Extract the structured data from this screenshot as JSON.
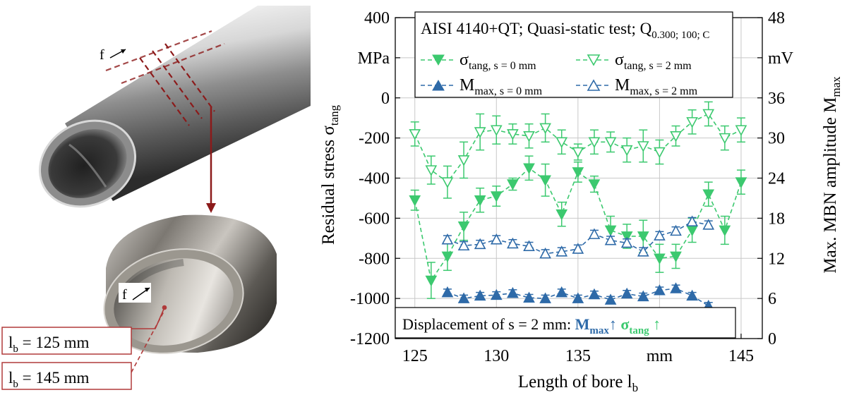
{
  "photo": {
    "direction_label": "f",
    "bore_labels": [
      {
        "text": "l",
        "sub": "b",
        "rest": " = 125 mm"
      },
      {
        "text": "l",
        "sub": "b",
        "rest": " = 145 mm"
      }
    ]
  },
  "colors": {
    "tang": "#3cc96f",
    "mmax": "#2e6aa8",
    "frame": "#000000",
    "grid": "#c8c8c8",
    "label_box": "#b03a3a"
  },
  "chart_data": {
    "type": "line",
    "title_main": "AISI 4140+QT; Quasi-static test; Q",
    "title_sub": "0.300; 100; C",
    "xlabel_main": "Length of bore l",
    "xlabel_sub": "b",
    "ylabel_left_main": "Residual stress σ",
    "ylabel_left_sub": "tang",
    "ylabel_right_main": "Max. MBN amplitude M",
    "ylabel_right_sub": "max",
    "left_unit": "MPa",
    "right_unit": "mV",
    "x_unit": "mm",
    "xlim": [
      123.8,
      146.3
    ],
    "ylim_left": [
      -1200,
      400
    ],
    "ylim_right": [
      0,
      48
    ],
    "x_ticks": [
      "125",
      "130",
      "135",
      "mm",
      "145"
    ],
    "y_left_ticks": [
      "400",
      "MPa",
      "0",
      "-200",
      "-400",
      "-600",
      "-800",
      "-1000",
      "-1200"
    ],
    "y_right_ticks": [
      "48",
      "mV",
      "36",
      "30",
      "24",
      "18",
      "12",
      "6",
      "0"
    ],
    "legend": [
      {
        "main": "σ",
        "sub": "tang, s = 0 mm"
      },
      {
        "main": "σ",
        "sub": "tang, s = 2 mm"
      },
      {
        "main": "M",
        "sub": "max, s = 0 mm"
      },
      {
        "main": "M",
        "sub": "max, s = 2 mm"
      }
    ],
    "annotation": {
      "text": "Displacement of s = 2 mm: ",
      "m_main": "M",
      "m_sub": "max",
      "arrow1": "↑ ",
      "s_main": "σ",
      "s_sub": "tang",
      "arrow2": " ↑"
    },
    "series": [
      {
        "axis": "left",
        "marker": "down",
        "filled": true,
        "color": "tang",
        "x": [
          125,
          126,
          127,
          128,
          129,
          130,
          131,
          132,
          133,
          134,
          135,
          136,
          137,
          138,
          139,
          140,
          141,
          142,
          143,
          144,
          145
        ],
        "y": [
          -510,
          -910,
          -790,
          -640,
          -510,
          -490,
          -430,
          -350,
          -410,
          -580,
          -370,
          -430,
          -660,
          -690,
          -690,
          -800,
          -790,
          -660,
          -480,
          -660,
          -420
        ],
        "err": [
          50,
          90,
          70,
          70,
          60,
          50,
          30,
          60,
          80,
          60,
          50,
          40,
          70,
          60,
          80,
          70,
          60,
          60,
          60,
          70,
          60
        ]
      },
      {
        "axis": "left",
        "marker": "down",
        "filled": false,
        "color": "tang",
        "x": [
          125,
          126,
          127,
          128,
          129,
          130,
          131,
          132,
          133,
          134,
          135,
          136,
          137,
          138,
          139,
          140,
          141,
          142,
          143,
          144,
          145
        ],
        "y": [
          -180,
          -360,
          -420,
          -310,
          -170,
          -160,
          -180,
          -190,
          -150,
          -220,
          -270,
          -220,
          -220,
          -260,
          -240,
          -270,
          -190,
          -120,
          -80,
          -200,
          -160
        ],
        "err": [
          60,
          70,
          80,
          90,
          90,
          70,
          50,
          60,
          70,
          60,
          40,
          60,
          50,
          60,
          80,
          60,
          50,
          60,
          60,
          60,
          60
        ]
      },
      {
        "axis": "right",
        "marker": "up",
        "filled": true,
        "color": "mmax",
        "x": [
          127,
          128,
          129,
          130,
          131,
          132,
          133,
          134,
          135,
          136,
          137,
          138,
          139,
          140,
          141,
          142,
          143
        ],
        "y": [
          6.9,
          6.0,
          6.4,
          6.5,
          6.8,
          6.1,
          6.0,
          6.9,
          6.0,
          6.6,
          5.8,
          6.7,
          6.3,
          7.2,
          7.5,
          6.4,
          4.9
        ],
        "err": [
          0.5,
          0.5,
          0.5,
          0.5,
          0.5,
          0.5,
          0.5,
          0.5,
          0.5,
          0.5,
          0.5,
          0.5,
          0.5,
          0.5,
          0.5,
          0.5,
          0.5
        ]
      },
      {
        "axis": "right",
        "marker": "up",
        "filled": false,
        "color": "mmax",
        "x": [
          127,
          128,
          129,
          130,
          131,
          132,
          133,
          134,
          135,
          136,
          137,
          138,
          139,
          140,
          141,
          142,
          143
        ],
        "y": [
          14.8,
          13.9,
          14.1,
          14.8,
          14.2,
          13.8,
          12.7,
          13.0,
          13.4,
          15.6,
          14.7,
          14.3,
          13.0,
          15.4,
          16.1,
          17.5,
          17.0
        ],
        "err": [
          0.6,
          0.6,
          0.6,
          0.6,
          0.6,
          0.6,
          0.6,
          0.6,
          0.6,
          0.6,
          0.6,
          0.6,
          0.6,
          0.6,
          0.6,
          0.6,
          0.6
        ]
      }
    ]
  }
}
